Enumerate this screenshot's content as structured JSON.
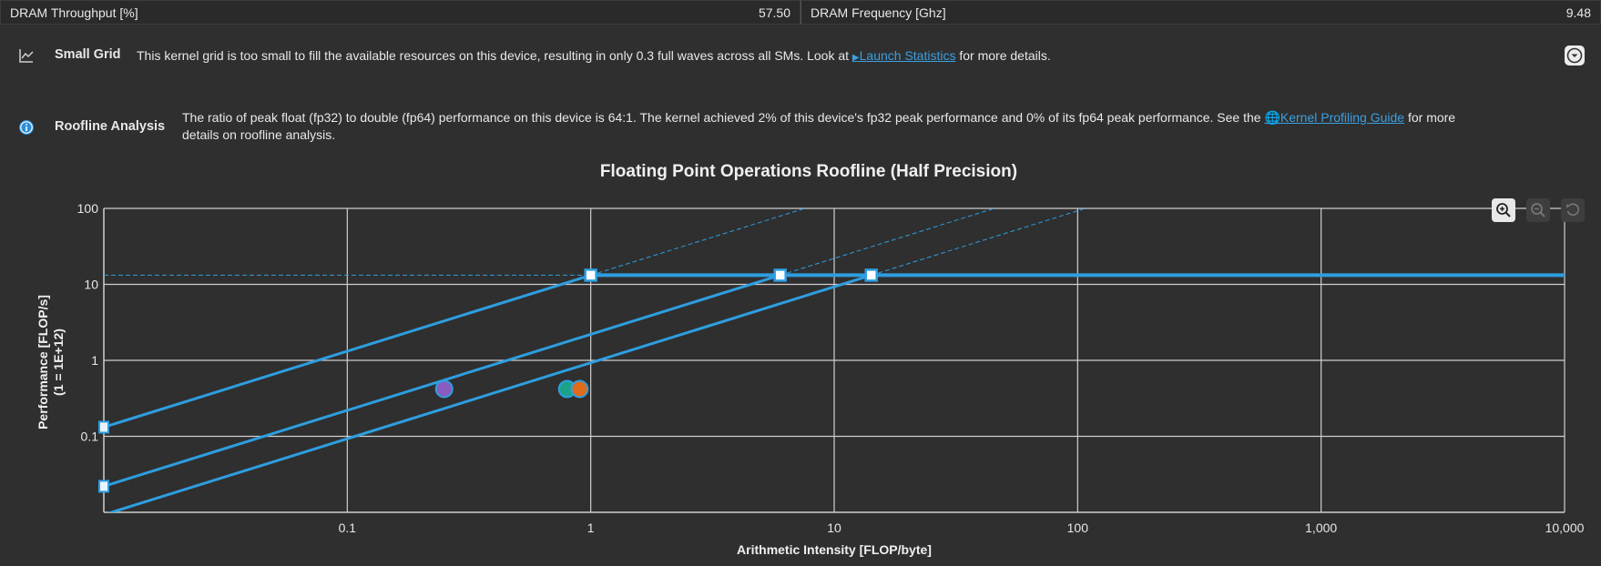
{
  "metrics": [
    {
      "label": "DRAM Throughput [%]",
      "value": "57.50"
    },
    {
      "label": "DRAM Frequency [Ghz]",
      "value": "9.48"
    }
  ],
  "small_grid": {
    "title": "Small Grid",
    "text_before": "This kernel grid is too small to fill the available resources on this device, resulting in only 0.3 full waves across all SMs. Look at ",
    "link": "Launch Statistics",
    "text_after": " for more details."
  },
  "roofline": {
    "title": "Roofline Analysis",
    "text_before": "The ratio of peak float (fp32) to double (fp64) performance on this device is 64:1. The kernel achieved 2% of this device's fp32 peak performance and 0% of its fp64 peak performance. See the ",
    "link": "Kernel Profiling Guide",
    "text_after": " for more",
    "text_line2": "details on roofline analysis."
  },
  "colors": {
    "accent": "#2e9ee0",
    "link": "#3b9fe0",
    "point_purple": "#8a5cc0",
    "point_teal": "#1ba38a",
    "point_orange": "#e06b1a"
  },
  "chart_data": {
    "type": "scatter",
    "title": "Floating Point Operations Roofline (Half Precision)",
    "xlabel": "Arithmetic Intensity [FLOP/byte]",
    "ylabel_line1": "Performance [FLOP/s]",
    "ylabel_line2": "(1 = 1E+12)",
    "x_scale": "log",
    "y_scale": "log",
    "xlim": [
      0.01,
      10000
    ],
    "ylim": [
      0.01,
      100
    ],
    "x_ticks": [
      {
        "value": 0.1,
        "label": "0.1"
      },
      {
        "value": 1,
        "label": "1"
      },
      {
        "value": 10,
        "label": "10"
      },
      {
        "value": 100,
        "label": "100"
      },
      {
        "value": 1000,
        "label": "1,000"
      },
      {
        "value": 10000,
        "label": "10,000"
      }
    ],
    "y_ticks": [
      {
        "value": 0.1,
        "label": "0.1"
      },
      {
        "value": 1,
        "label": "1"
      },
      {
        "value": 10,
        "label": "10"
      },
      {
        "value": 100,
        "label": "100"
      }
    ],
    "grid": true,
    "peak_performance": 13.2,
    "rooflines": [
      {
        "ridge_x": 1.0,
        "peak": 13.2
      },
      {
        "ridge_x": 6.0,
        "peak": 13.2
      },
      {
        "ridge_x": 14.2,
        "peak": 13.2
      }
    ],
    "guide_lines": [
      {
        "x0": 1.0,
        "x1": 7.6
      },
      {
        "x0": 6.0,
        "x1": 46
      },
      {
        "x0": 14.2,
        "x1": 108
      }
    ],
    "points": [
      {
        "x": 0.25,
        "y": 0.42,
        "color": "#8a5cc0"
      },
      {
        "x": 0.8,
        "y": 0.42,
        "color": "#1ba38a"
      },
      {
        "x": 0.9,
        "y": 0.42,
        "color": "#e06b1a"
      }
    ]
  },
  "icons": {
    "small_grid": "chart-line-icon",
    "roofline": "info-icon",
    "expand": "chevron-down-circle-icon",
    "zoom_in": "zoom-in-icon",
    "zoom_out": "zoom-out-icon",
    "reset": "reset-icon"
  }
}
